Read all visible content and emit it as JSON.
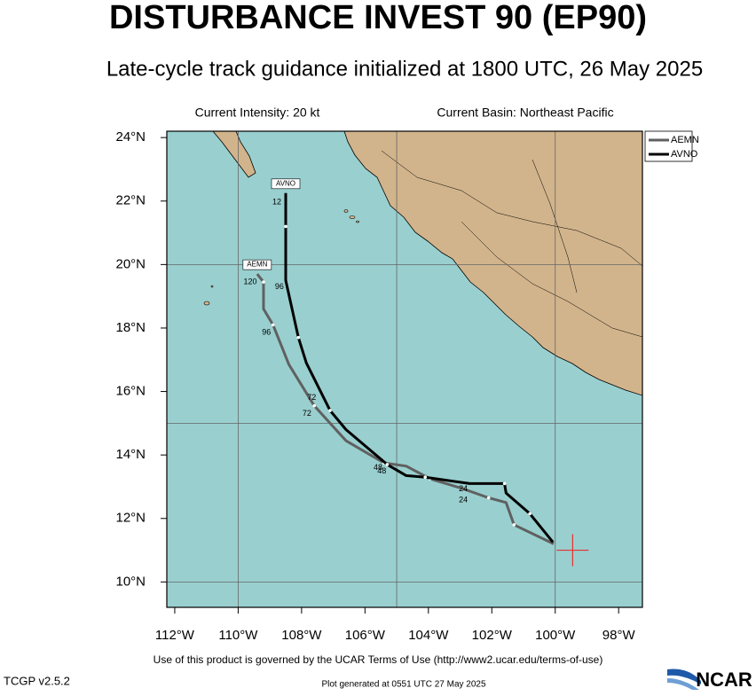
{
  "chart_data": {
    "type": "track-map",
    "title": "DISTURBANCE INVEST 90 (EP90)",
    "subtitle": "Late-cycle track guidance initialized at 1800 UTC, 26 May 2025",
    "intensity": "Current Intensity: 20 kt",
    "basin": "Current Basin: Northeast Pacific",
    "xlim": [
      -112.25,
      -97.25
    ],
    "ylim": [
      9.2,
      24.2
    ],
    "xticks": [
      {
        "value": -112,
        "label": "112°W"
      },
      {
        "value": -110,
        "label": "110°W"
      },
      {
        "value": -108,
        "label": "108°W"
      },
      {
        "value": -106,
        "label": "106°W"
      },
      {
        "value": -104,
        "label": "104°W"
      },
      {
        "value": -102,
        "label": "102°W"
      },
      {
        "value": -100,
        "label": "100°W"
      },
      {
        "value": -98,
        "label": "98°W"
      }
    ],
    "yticks": [
      {
        "value": 10,
        "label": "10°N"
      },
      {
        "value": 12,
        "label": "12°N"
      },
      {
        "value": 14,
        "label": "14°N"
      },
      {
        "value": 16,
        "label": "16°N"
      },
      {
        "value": 18,
        "label": "18°N"
      },
      {
        "value": 20,
        "label": "20°N"
      },
      {
        "value": 22,
        "label": "22°N"
      },
      {
        "value": 24,
        "label": "24°N"
      }
    ],
    "grid_x": [
      -110,
      -105,
      -100
    ],
    "grid_y": [
      10,
      15,
      20
    ],
    "current_position": {
      "x": -99.45,
      "y": 11.0,
      "color": "#e8312f"
    },
    "series": [
      {
        "name": "AEMN",
        "color": "#606060",
        "x": [
          -100.05,
          -101.3,
          -101.55,
          -102.1,
          -102.95,
          -103.95,
          -104.7,
          -105.4,
          -106.6,
          -107.6,
          -108.4,
          -108.9,
          -109.2,
          -109.2,
          -109.4
        ],
        "values": [
          11.2,
          11.8,
          12.5,
          12.65,
          12.95,
          13.25,
          13.65,
          13.75,
          14.45,
          15.55,
          16.85,
          18.1,
          18.6,
          19.45,
          19.7
        ],
        "hour_labels": [
          {
            "text": "24",
            "x": -102.9,
            "y": 12.57
          },
          {
            "text": "48",
            "x": -105.47,
            "y": 13.49
          },
          {
            "text": "72",
            "x": -107.83,
            "y": 15.3
          },
          {
            "text": "96",
            "x": -109.11,
            "y": 17.86
          },
          {
            "text": "120",
            "x": -109.62,
            "y": 19.45
          }
        ]
      },
      {
        "name": "AVNO",
        "color": "#000000",
        "x": [
          -100.07,
          -100.8,
          -101.55,
          -101.6,
          -102.7,
          -104.1,
          -104.7,
          -105.3,
          -106.6,
          -107.1,
          -107.85,
          -108.1,
          -108.5,
          -108.5,
          -108.5
        ],
        "values": [
          11.25,
          12.15,
          12.8,
          13.1,
          13.1,
          13.3,
          13.35,
          13.7,
          14.8,
          15.4,
          16.9,
          17.7,
          19.5,
          21.2,
          22.25
        ],
        "hour_labels": [
          {
            "text": "24",
            "x": -102.9,
            "y": 12.92
          },
          {
            "text": "48",
            "x": -105.59,
            "y": 13.6
          },
          {
            "text": "72",
            "x": -107.68,
            "y": 15.8
          },
          {
            "text": "96",
            "x": -108.7,
            "y": 19.29
          },
          {
            "text": "12",
            "x": -108.78,
            "y": 21.96
          }
        ]
      }
    ]
  },
  "footer": {
    "terms": "Use of this product is governed by the UCAR Terms of Use (http://www2.ucar.edu/terms-of-use)",
    "version": "TCGP v2.5.2",
    "generated": "Plot generated at 0551 UTC  27 May 2025",
    "logo": "NCAR"
  }
}
